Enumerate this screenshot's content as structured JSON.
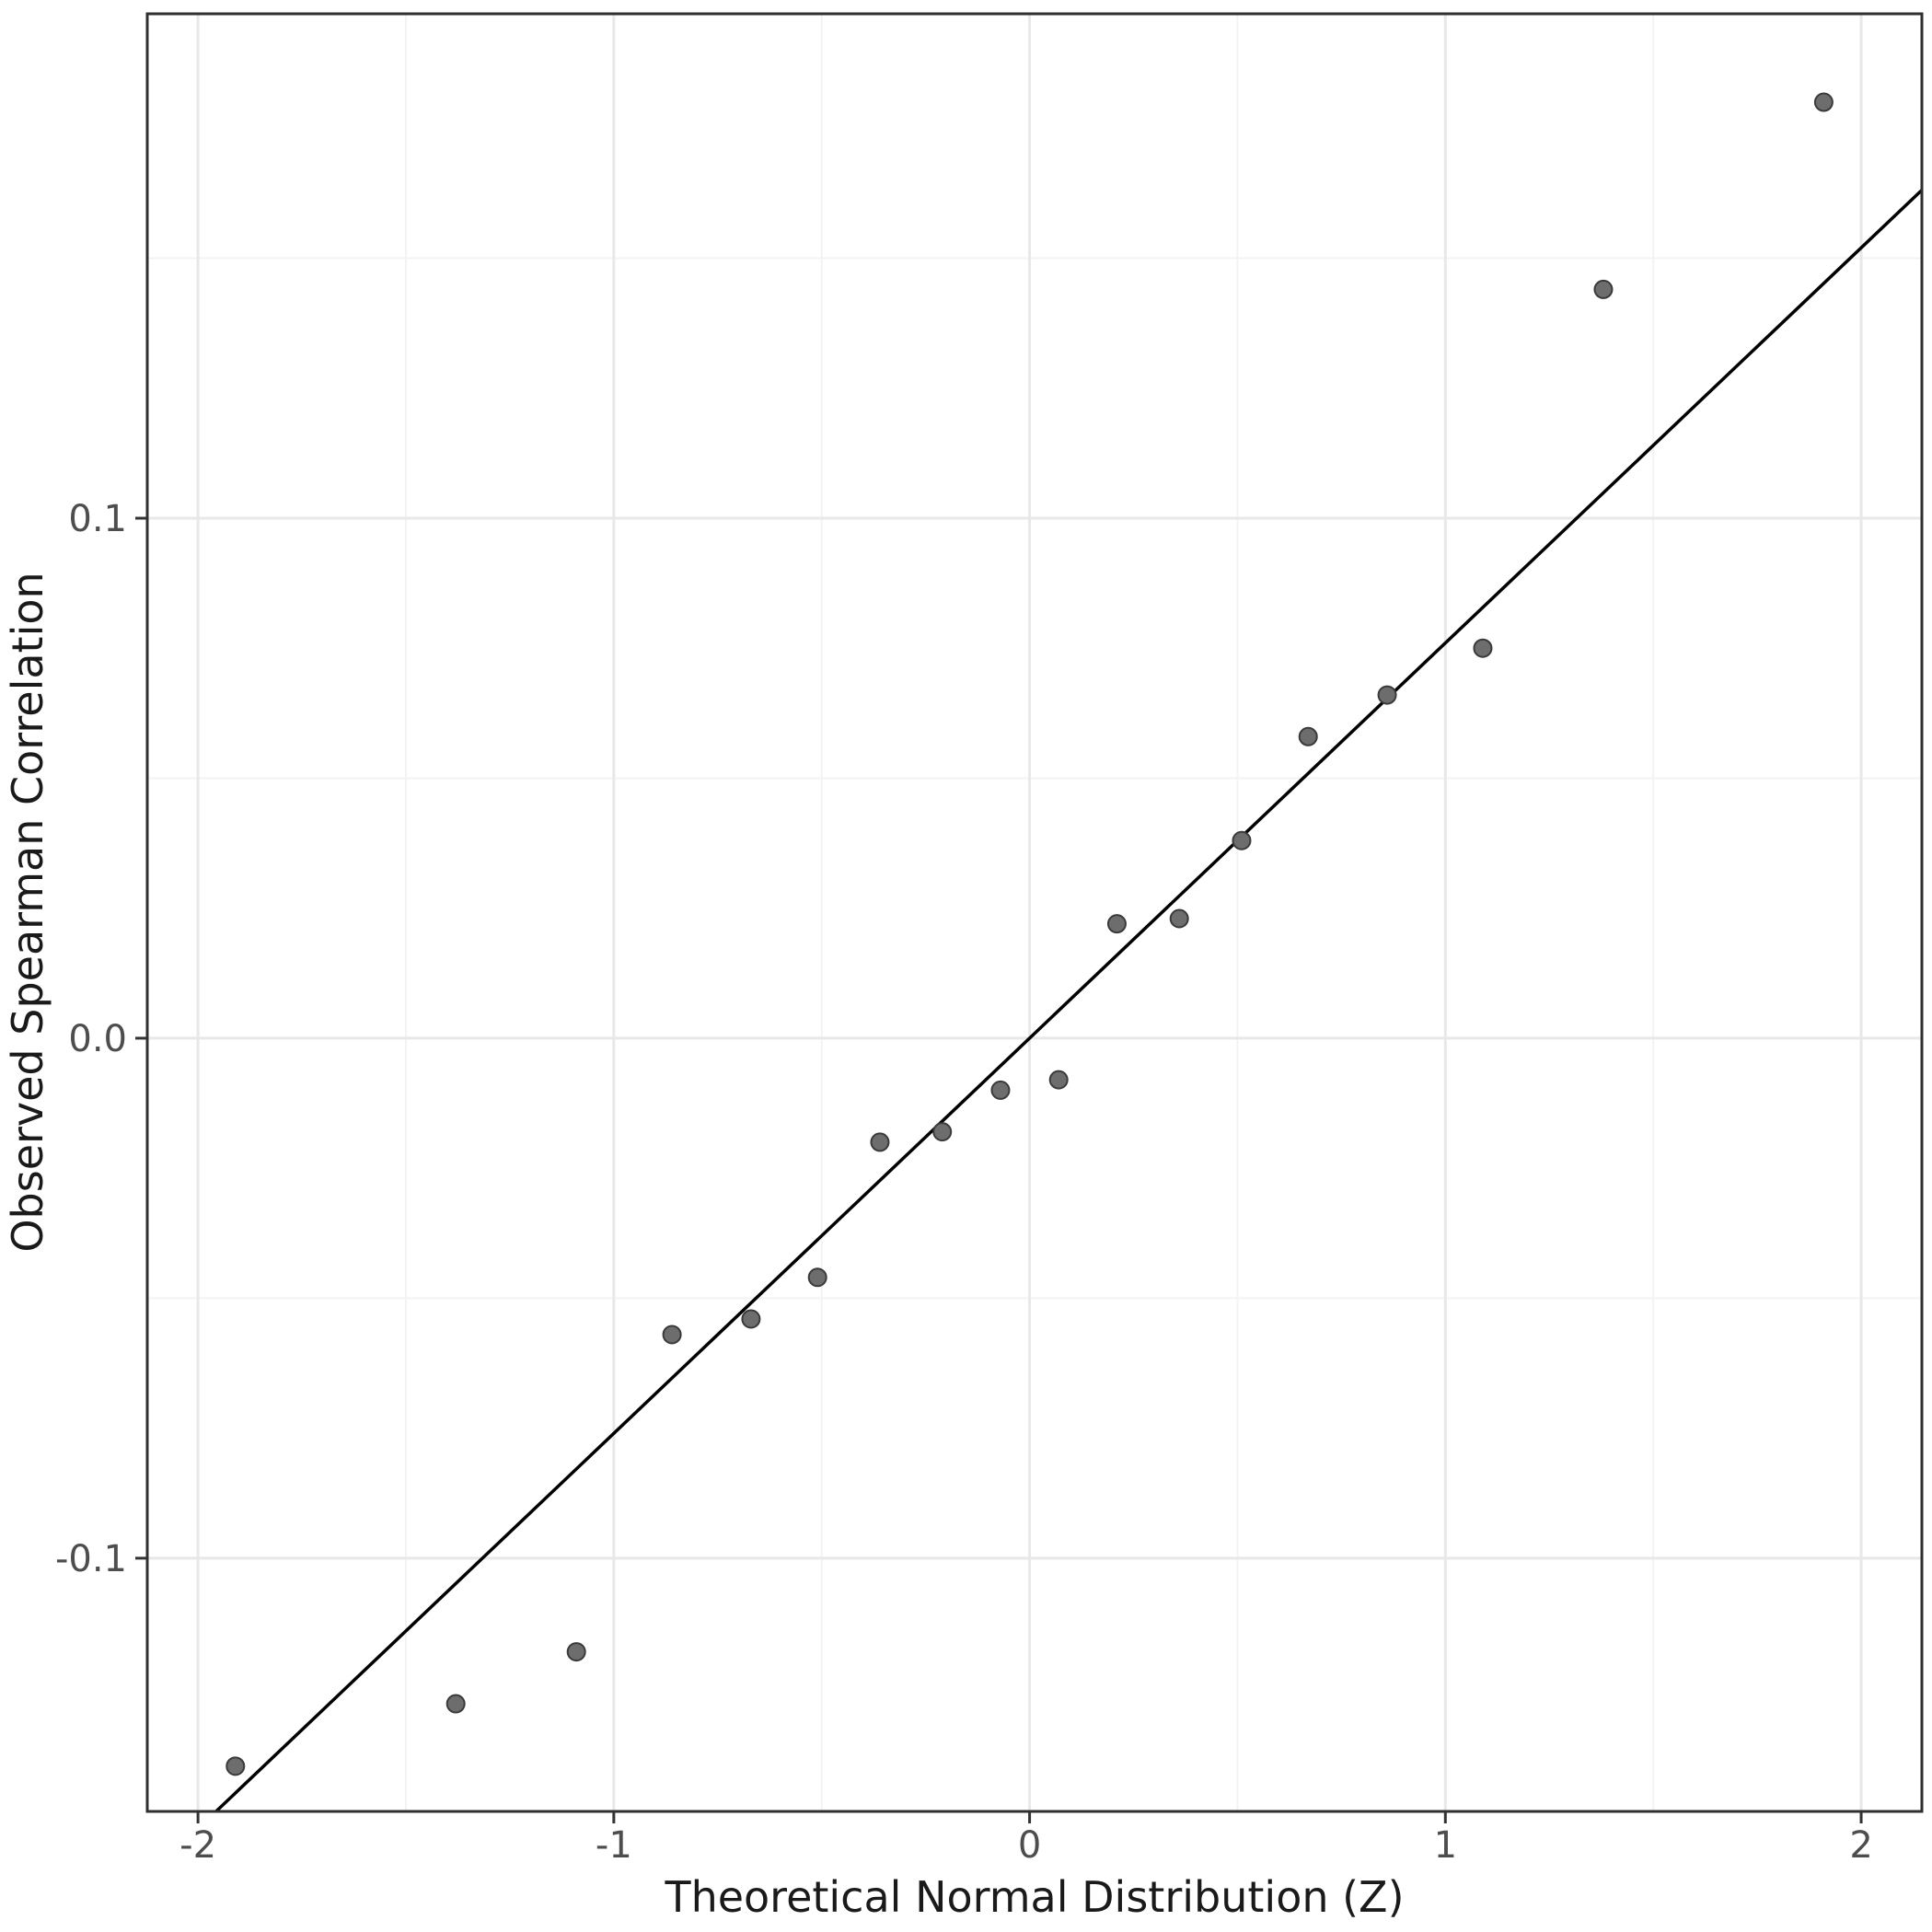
{
  "figure": {
    "background": "#ffffff"
  },
  "chart_data": {
    "type": "scatter",
    "title": "",
    "xlabel": "Theoretical Normal Distribution (Z)",
    "ylabel": "Observed Spearman Correlation",
    "x_axis": {
      "label": "Theoretical Normal Distribution (Z)",
      "ticks": [
        -2,
        -1,
        0,
        1,
        2
      ],
      "tick_labels": [
        "-2",
        "-1",
        "0",
        "1",
        "2"
      ],
      "minor_ticks": [
        -1.5,
        -0.5,
        0.5,
        1.5
      ],
      "range": [
        -2.122,
        2.146
      ]
    },
    "y_axis": {
      "label": "Observed Spearman Correlation",
      "ticks": [
        -0.1,
        0.0,
        0.1
      ],
      "tick_labels": [
        "-0.1",
        "0.0",
        "0.1"
      ],
      "minor_ticks": [
        -0.15,
        -0.05,
        0.05,
        0.15
      ],
      "range": [
        -0.1487,
        0.197
      ]
    },
    "points": {
      "x": [
        -1.91,
        -1.38,
        -1.09,
        -0.86,
        -0.67,
        -0.51,
        -0.36,
        -0.21,
        -0.07,
        0.07,
        0.21,
        0.36,
        0.51,
        0.67,
        0.86,
        1.09,
        1.38,
        1.91
      ],
      "y": [
        -0.14,
        -0.128,
        -0.118,
        -0.057,
        -0.054,
        -0.046,
        -0.02,
        -0.018,
        -0.01,
        -0.008,
        0.022,
        0.023,
        0.038,
        0.058,
        0.066,
        0.075,
        0.144,
        0.18
      ]
    },
    "qq_line": {
      "slope": 0.076,
      "intercept": 0.0
    },
    "grid": "on",
    "legend": "none",
    "style": {
      "point_fill": "#6d6d6d",
      "point_stroke": "#3a3a3a",
      "line_color": "#000000",
      "grid_major_color": "#e8e8e8",
      "grid_minor_color": "#f3f3f3",
      "panel_border_color": "#2f2f2f",
      "tick_color": "#333333",
      "tick_label_color": "#4d4d4d",
      "axis_title_color": "#1a1a1a",
      "background": "#ffffff"
    }
  }
}
